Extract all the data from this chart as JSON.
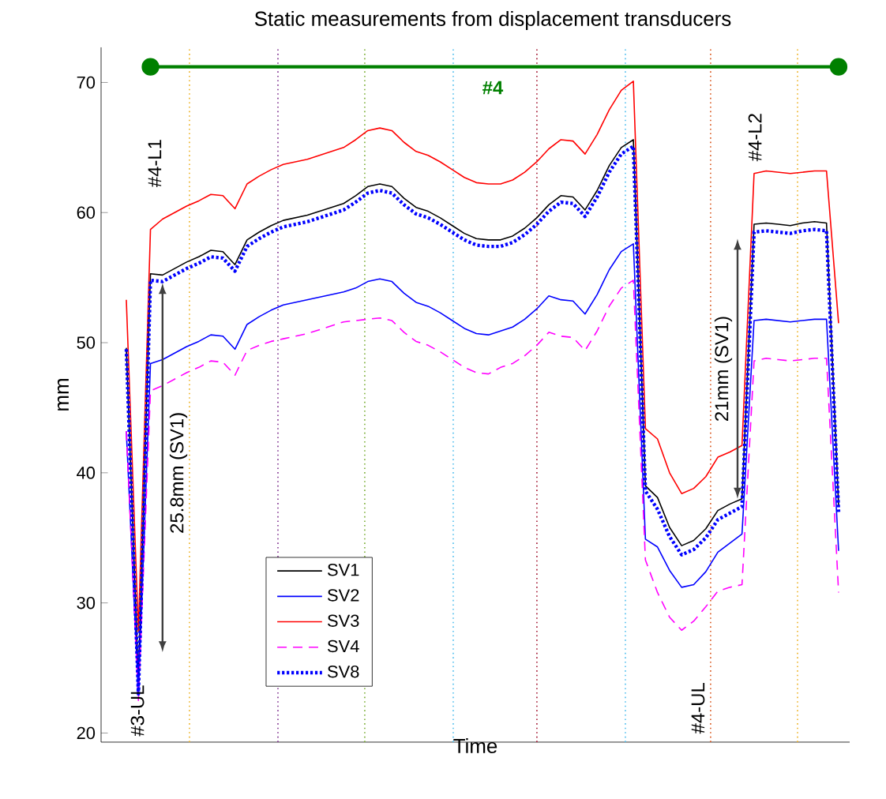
{
  "chart_data": {
    "type": "line",
    "title": "Static measurements from displacement transducers",
    "xlabel": "Time",
    "ylabel": "mm",
    "categories": [
      null,
      null,
      null,
      null,
      null,
      null,
      null,
      null,
      null,
      null,
      null,
      null,
      null,
      null,
      null,
      null,
      null,
      null,
      null,
      null,
      null,
      null,
      null,
      null,
      null,
      null,
      null,
      null,
      null,
      null,
      null,
      null,
      null,
      null,
      null,
      null,
      null,
      null,
      null,
      null,
      null,
      null,
      null,
      null,
      null,
      null,
      null,
      null,
      null,
      null,
      null,
      null,
      null,
      null,
      null,
      null,
      null,
      null,
      null,
      null
    ],
    "ylim": [
      19.3,
      72.7
    ],
    "yticks": [
      20,
      30,
      40,
      50,
      60,
      70
    ],
    "tick_labels": "y",
    "legend": "bottom left",
    "series": [
      {
        "name": "SV1",
        "color": "#000000",
        "line_style": "solid",
        "values": [
          49.6,
          24.0,
          55.3,
          55.2,
          55.7,
          56.2,
          56.6,
          57.1,
          57.0,
          56.0,
          57.9,
          58.5,
          59.0,
          59.4,
          59.6,
          59.8,
          60.1,
          60.4,
          60.7,
          61.3,
          62.0,
          62.2,
          62.0,
          61.1,
          60.4,
          60.1,
          59.6,
          59.0,
          58.4,
          58.0,
          57.9,
          57.9,
          58.2,
          58.8,
          59.6,
          60.6,
          61.3,
          61.2,
          60.2,
          61.7,
          63.6,
          65.0,
          65.6,
          39.0,
          38.1,
          35.8,
          34.4,
          34.8,
          35.7,
          37.1,
          37.6,
          38.0,
          59.1,
          59.2,
          59.1,
          59.0,
          59.2,
          59.3,
          59.2,
          37.5
        ]
      },
      {
        "name": "SV2",
        "color": "#0000ff",
        "line_style": "solid",
        "values": [
          43.2,
          23.0,
          48.4,
          48.7,
          49.2,
          49.7,
          50.1,
          50.6,
          50.5,
          49.5,
          51.4,
          52.0,
          52.5,
          52.9,
          53.1,
          53.3,
          53.5,
          53.7,
          53.9,
          54.2,
          54.7,
          54.9,
          54.7,
          53.8,
          53.1,
          52.8,
          52.3,
          51.7,
          51.1,
          50.7,
          50.6,
          50.9,
          51.2,
          51.8,
          52.6,
          53.6,
          53.3,
          53.2,
          52.2,
          53.7,
          55.6,
          57.0,
          57.6,
          34.9,
          34.3,
          32.5,
          31.2,
          31.4,
          32.4,
          33.9,
          34.6,
          35.3,
          51.7,
          51.8,
          51.7,
          51.6,
          51.7,
          51.8,
          51.8,
          34.0
        ]
      },
      {
        "name": "SV3",
        "color": "#ff0000",
        "line_style": "solid",
        "values": [
          53.3,
          27.8,
          58.7,
          59.5,
          60.0,
          60.5,
          60.9,
          61.4,
          61.3,
          60.3,
          62.2,
          62.8,
          63.3,
          63.7,
          63.9,
          64.1,
          64.4,
          64.7,
          65.0,
          65.6,
          66.3,
          66.5,
          66.3,
          65.4,
          64.7,
          64.4,
          63.9,
          63.3,
          62.7,
          62.3,
          62.2,
          62.2,
          62.5,
          63.1,
          63.9,
          64.9,
          65.6,
          65.5,
          64.5,
          66.0,
          67.9,
          69.4,
          70.1,
          43.4,
          42.6,
          40.0,
          38.4,
          38.8,
          39.7,
          41.2,
          41.6,
          42.1,
          63.0,
          63.2,
          63.1,
          63.0,
          63.1,
          63.2,
          63.2,
          51.5
        ]
      },
      {
        "name": "SV4",
        "color": "#ff00ff",
        "line_style": "dashed",
        "values": [
          43.2,
          22.5,
          46.3,
          46.7,
          47.2,
          47.7,
          48.1,
          48.6,
          48.5,
          47.5,
          49.4,
          49.8,
          50.1,
          50.3,
          50.5,
          50.7,
          51.0,
          51.3,
          51.6,
          51.7,
          51.8,
          51.9,
          51.7,
          50.8,
          50.1,
          49.8,
          49.3,
          48.7,
          48.1,
          47.7,
          47.6,
          48.1,
          48.4,
          49.0,
          49.8,
          50.8,
          50.5,
          50.4,
          49.4,
          50.9,
          52.8,
          54.2,
          54.8,
          33.3,
          30.8,
          28.9,
          27.9,
          28.6,
          29.7,
          30.9,
          31.2,
          31.4,
          48.6,
          48.8,
          48.7,
          48.6,
          48.7,
          48.8,
          48.8,
          30.8
        ]
      },
      {
        "name": "SV8",
        "color": "#0000ff",
        "line_style": "dotted",
        "values": [
          49.5,
          23.0,
          54.8,
          54.7,
          55.2,
          55.7,
          56.1,
          56.6,
          56.5,
          55.5,
          57.4,
          58.0,
          58.5,
          58.9,
          59.1,
          59.3,
          59.6,
          59.9,
          60.2,
          60.8,
          61.5,
          61.7,
          61.5,
          60.6,
          59.9,
          59.6,
          59.1,
          58.5,
          57.9,
          57.5,
          57.4,
          57.4,
          57.7,
          58.3,
          59.1,
          60.1,
          60.8,
          60.7,
          59.7,
          61.2,
          63.1,
          64.5,
          65.1,
          38.6,
          37.2,
          35.1,
          33.7,
          34.1,
          35.0,
          36.4,
          36.9,
          37.4,
          58.5,
          58.6,
          58.5,
          58.4,
          58.6,
          58.7,
          58.6,
          37.0
        ]
      },
      {
        "color": "#008000",
        "line_style": "solid",
        "values": [
          null,
          null,
          71.2,
          71.2,
          71.2,
          71.2,
          71.2,
          71.2,
          71.2,
          71.2,
          71.2,
          71.2,
          71.2,
          71.2,
          71.2,
          71.2,
          71.2,
          71.2,
          71.2,
          71.2,
          71.2,
          71.2,
          71.2,
          71.2,
          71.2,
          71.2,
          71.2,
          71.2,
          71.2,
          71.2,
          71.2,
          71.2,
          71.2,
          71.2,
          71.2,
          71.2,
          71.2,
          71.2,
          71.2,
          71.2,
          71.2,
          71.2,
          71.2,
          71.2,
          71.2,
          71.2,
          71.2,
          71.2,
          71.2,
          71.2,
          71.2,
          71.2,
          71.2,
          71.2,
          71.2,
          71.2,
          71.2,
          71.2,
          71.2,
          71.2
        ]
      }
    ],
    "annotations": [
      "#3-UL",
      "#4-L1",
      "25.8mm (SV1)",
      "#4-UL",
      "21mm (SV1)",
      "#4-L2",
      "#4"
    ]
  }
}
